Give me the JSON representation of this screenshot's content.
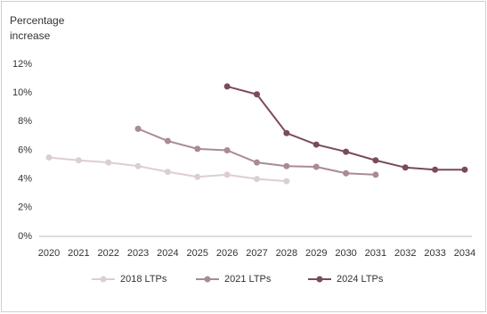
{
  "chart_data": {
    "type": "line",
    "y_label": "Percentage increase",
    "categories": [
      "2020",
      "2021",
      "2022",
      "2023",
      "2024",
      "2025",
      "2026",
      "2027",
      "2028",
      "2029",
      "2030",
      "2031",
      "2032",
      "2033",
      "2034"
    ],
    "series": [
      {
        "name": "2018 LTPs",
        "color": "#dcced1",
        "values": [
          5.5,
          5.3,
          5.15,
          4.9,
          4.5,
          4.15,
          4.3,
          4.0,
          3.85,
          null,
          null,
          null,
          null,
          null,
          null
        ]
      },
      {
        "name": "2021 LTPs",
        "color": "#a98b92",
        "values": [
          null,
          null,
          null,
          7.5,
          6.65,
          6.1,
          6.0,
          5.15,
          4.9,
          4.85,
          4.4,
          4.3,
          null,
          null,
          null
        ]
      },
      {
        "name": "2024 LTPs",
        "color": "#7b4b57",
        "values": [
          null,
          null,
          null,
          null,
          null,
          null,
          10.45,
          9.9,
          7.2,
          6.4,
          5.9,
          5.3,
          4.8,
          4.65,
          4.65
        ]
      }
    ],
    "ylim": [
      0,
      12
    ],
    "yticks": [
      {
        "value": 0,
        "label": "0%"
      },
      {
        "value": 2,
        "label": "2%"
      },
      {
        "value": 4,
        "label": "4%"
      },
      {
        "value": 6,
        "label": "6%"
      },
      {
        "value": 8,
        "label": "8%"
      },
      {
        "value": 10,
        "label": "10%"
      },
      {
        "value": 12,
        "label": "12%"
      }
    ],
    "grid": false,
    "legend": "bottom"
  }
}
